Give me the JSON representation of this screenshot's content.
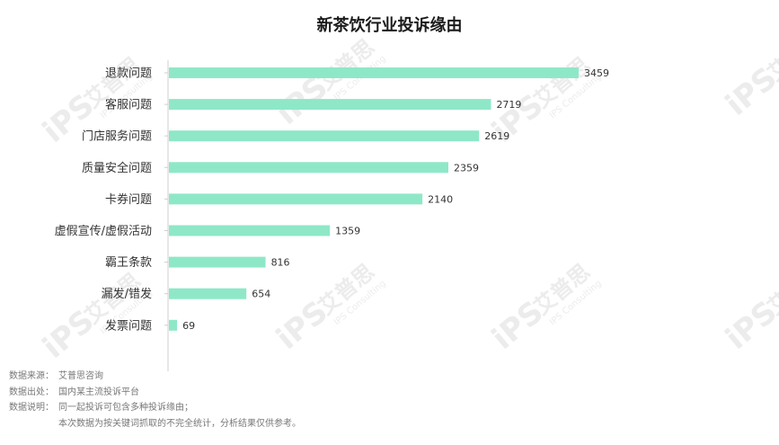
{
  "title": "新茶饮行业投诉缘由",
  "colors": {
    "bar": "#8ee8c8",
    "axis": "#cfcfcf",
    "watermark": "#ececec"
  },
  "watermark": {
    "brand": "艾普思",
    "logo": "iPS",
    "sub": "IPS Consulting"
  },
  "chart_data": {
    "type": "bar",
    "orientation": "horizontal",
    "title": "新茶饮行业投诉缘由",
    "categories": [
      "退款问题",
      "客服问题",
      "门店服务问题",
      "质量安全问题",
      "卡券问题",
      "虚假宣传/虚假活动",
      "霸王条款",
      "漏发/错发",
      "发票问题"
    ],
    "values": [
      3459,
      2719,
      2619,
      2359,
      2140,
      1359,
      816,
      654,
      69
    ],
    "xlim": [
      0,
      3459
    ],
    "grid": false,
    "legend": "none"
  },
  "notes": [
    {
      "key": "数据来源：",
      "text": "艾普思咨询"
    },
    {
      "key": "数据出处：",
      "text": "国内某主流投诉平台"
    },
    {
      "key": "数据说明：",
      "text": "同一起投诉可包含多种投诉缘由；"
    },
    {
      "key": "",
      "text": "本次数据为按关键词抓取的不完全统计，分析结果仅供参考。"
    }
  ]
}
